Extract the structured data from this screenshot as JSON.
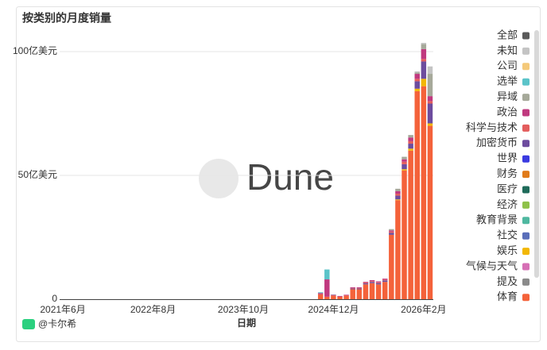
{
  "chart_data": {
    "type": "stacked_bar",
    "title": "按类别的月度销量",
    "x_label": "日期",
    "watermark": "Dune",
    "author": "@卡尔希",
    "categories": [
      "2021年6月",
      null,
      null,
      null,
      null,
      null,
      null,
      null,
      null,
      null,
      null,
      null,
      null,
      null,
      "2022年8月",
      null,
      null,
      null,
      null,
      null,
      null,
      null,
      null,
      null,
      null,
      null,
      null,
      null,
      "2023年10月",
      null,
      null,
      null,
      null,
      null,
      null,
      null,
      null,
      null,
      null,
      null,
      null,
      null,
      "2024年12月",
      null,
      null,
      null,
      null,
      null,
      null,
      null,
      null,
      null,
      null,
      null,
      null,
      null,
      "2026年2月",
      null
    ],
    "ylim": [
      0,
      108
    ],
    "yticks": [
      0,
      {
        "value": 50,
        "label": "50亿美元"
      },
      {
        "value": 100,
        "label": "100亿美元"
      }
    ],
    "grid": true,
    "legend": "right",
    "series": [
      {
        "name": "全部",
        "color": "#5a5a5a",
        "values": [
          0,
          0,
          0,
          0,
          0,
          0,
          0,
          0,
          0,
          0,
          0,
          0,
          0,
          0,
          0,
          0,
          0,
          0,
          0,
          0,
          0,
          0,
          0,
          0,
          0,
          0,
          0,
          0,
          0,
          0,
          0,
          0,
          0,
          0,
          0,
          0,
          0,
          0,
          0,
          0,
          0,
          0,
          0,
          0,
          0,
          0,
          0,
          0,
          0,
          0,
          0,
          0,
          0,
          0,
          0,
          0,
          0,
          0
        ]
      },
      {
        "name": "未知",
        "color": "#c4c4c4",
        "values": [
          0,
          0,
          0,
          0,
          0,
          0,
          0,
          0,
          0,
          0,
          0,
          0,
          0,
          0,
          0,
          0,
          0,
          0,
          0,
          0,
          0,
          0,
          0,
          0,
          0,
          0,
          0,
          0,
          0,
          0,
          0,
          0,
          0,
          0,
          0,
          0,
          0,
          0,
          0,
          0,
          0,
          0,
          0,
          0,
          0,
          0,
          0,
          0,
          0,
          0,
          0,
          0,
          0,
          0,
          0,
          0.5,
          0.5,
          3
        ]
      },
      {
        "name": "公司",
        "color": "#f4c97a",
        "values": [
          0,
          0,
          0,
          0,
          0,
          0,
          0,
          0,
          0,
          0,
          0,
          0,
          0,
          0,
          0,
          0,
          0,
          0,
          0,
          0,
          0,
          0,
          0,
          0,
          0,
          0,
          0,
          0,
          0,
          0,
          0,
          0,
          0,
          0,
          0,
          0,
          0,
          0,
          0,
          0,
          0,
          0,
          0,
          0,
          0,
          0,
          0,
          0,
          0,
          0,
          0,
          0,
          0,
          0,
          0,
          0,
          0,
          0
        ]
      },
      {
        "name": "选举",
        "color": "#5bc4c9",
        "values": [
          0,
          0,
          0,
          0,
          0,
          0,
          0,
          0,
          0,
          0,
          0,
          0,
          0,
          0,
          0,
          0,
          0,
          0,
          0,
          0,
          0,
          0,
          0,
          0,
          0,
          0,
          0,
          0,
          0,
          0,
          0,
          0,
          0,
          0,
          0,
          0,
          0,
          0,
          0,
          0,
          0.3,
          4,
          0.1,
          0,
          0,
          0,
          0,
          0,
          0,
          0,
          0,
          0,
          0,
          0,
          0,
          0,
          0,
          0
        ]
      },
      {
        "name": "异域",
        "color": "#a6a99a",
        "values": [
          0,
          0,
          0,
          0,
          0,
          0,
          0,
          0,
          0,
          0,
          0,
          0,
          0,
          0,
          0,
          0,
          0,
          0,
          0,
          0,
          0,
          0,
          0,
          0,
          0,
          0,
          0,
          0,
          0,
          0,
          0,
          0,
          0,
          0,
          0,
          0,
          0,
          0,
          0,
          0,
          0,
          0,
          0,
          0,
          0,
          0,
          0,
          0,
          0,
          0,
          0,
          0.5,
          1,
          1,
          1,
          0.5,
          2,
          9
        ]
      },
      {
        "name": "政治",
        "color": "#c0397f",
        "values": [
          0,
          0,
          0,
          0,
          0,
          0,
          0,
          0,
          0,
          0,
          0,
          0,
          0,
          0,
          0,
          0,
          0,
          0,
          0,
          0,
          0,
          0,
          0,
          0,
          0,
          0,
          0,
          0,
          0,
          0,
          0,
          0,
          0,
          0,
          0,
          0,
          0,
          0,
          0,
          0,
          0.5,
          7,
          0.3,
          0.3,
          0.3,
          0.3,
          0.3,
          0.3,
          0.4,
          0.4,
          0.4,
          0.5,
          1,
          1,
          1.5,
          2,
          4,
          2
        ]
      },
      {
        "name": "科学与技术",
        "color": "#e35d5d",
        "values": [
          0,
          0,
          0,
          0,
          0,
          0,
          0,
          0,
          0,
          0,
          0,
          0,
          0,
          0,
          0,
          0,
          0,
          0,
          0,
          0,
          0,
          0,
          0,
          0,
          0,
          0,
          0,
          0,
          0,
          0,
          0,
          0,
          0,
          0,
          0,
          0,
          0,
          0,
          0,
          0,
          0,
          0,
          0,
          0,
          0,
          0.2,
          0.2,
          0.3,
          0.3,
          0.3,
          0.3,
          0.5,
          0.8,
          1,
          1,
          1,
          1,
          1
        ]
      },
      {
        "name": "加密货币",
        "color": "#6d4c9e",
        "values": [
          0,
          0,
          0,
          0,
          0,
          0,
          0,
          0,
          0,
          0,
          0,
          0,
          0,
          0,
          0,
          0,
          0,
          0,
          0,
          0,
          0,
          0,
          0,
          0,
          0,
          0,
          0,
          0,
          0,
          0,
          0,
          0,
          0,
          0,
          0,
          0,
          0,
          0,
          0,
          0,
          0,
          0,
          0,
          0,
          0,
          0.3,
          0.3,
          0.4,
          0.5,
          0.5,
          0.6,
          0.8,
          1.5,
          2,
          2,
          3,
          7,
          8
        ]
      },
      {
        "name": "世界",
        "color": "#3a3ae0",
        "values": [
          0,
          0,
          0,
          0,
          0,
          0,
          0,
          0,
          0,
          0,
          0,
          0,
          0,
          0,
          0,
          0,
          0,
          0,
          0,
          0,
          0,
          0,
          0,
          0,
          0,
          0,
          0,
          0,
          0,
          0,
          0,
          0,
          0,
          0,
          0,
          0,
          0,
          0,
          0,
          0,
          0,
          0,
          0,
          0,
          0,
          0,
          0,
          0,
          0,
          0,
          0,
          0,
          0,
          0,
          0,
          0,
          0,
          0
        ]
      },
      {
        "name": "财务",
        "color": "#e07b1a",
        "values": [
          0,
          0,
          0,
          0,
          0,
          0,
          0,
          0,
          0,
          0,
          0,
          0,
          0,
          0,
          0,
          0,
          0,
          0,
          0,
          0,
          0,
          0,
          0,
          0,
          0,
          0,
          0,
          0,
          0,
          0,
          0,
          0,
          0,
          0,
          0,
          0,
          0,
          0,
          0,
          0,
          0,
          0,
          0,
          0,
          0,
          0,
          0,
          0,
          0,
          0,
          0,
          0,
          0,
          0,
          0,
          0,
          0,
          0
        ]
      },
      {
        "name": "医疗",
        "color": "#1f6b5a",
        "values": [
          0,
          0,
          0,
          0,
          0,
          0,
          0,
          0,
          0,
          0,
          0,
          0,
          0,
          0,
          0,
          0,
          0,
          0,
          0,
          0,
          0,
          0,
          0,
          0,
          0,
          0,
          0,
          0,
          0,
          0,
          0,
          0,
          0,
          0,
          0,
          0,
          0,
          0,
          0,
          0,
          0,
          0,
          0,
          0,
          0,
          0,
          0,
          0,
          0,
          0,
          0,
          0,
          0,
          0,
          0,
          0,
          0,
          0
        ]
      },
      {
        "name": "经济",
        "color": "#8fc24a",
        "values": [
          0,
          0,
          0,
          0,
          0,
          0,
          0,
          0,
          0,
          0,
          0,
          0,
          0,
          0,
          0,
          0,
          0,
          0,
          0,
          0,
          0,
          0,
          0,
          0,
          0,
          0,
          0,
          0,
          0,
          0,
          0,
          0,
          0,
          0,
          0,
          0,
          0,
          0,
          0,
          0,
          0,
          0,
          0,
          0,
          0,
          0,
          0,
          0,
          0,
          0,
          0,
          0,
          0,
          0,
          0,
          0,
          0,
          0
        ]
      },
      {
        "name": "教育背景",
        "color": "#4fb8a0",
        "values": [
          0,
          0,
          0,
          0,
          0,
          0,
          0,
          0,
          0,
          0,
          0,
          0,
          0,
          0,
          0,
          0,
          0,
          0,
          0,
          0,
          0,
          0,
          0,
          0,
          0,
          0,
          0,
          0,
          0,
          0,
          0,
          0,
          0,
          0,
          0,
          0,
          0,
          0,
          0,
          0,
          0,
          0,
          0,
          0,
          0,
          0,
          0,
          0,
          0,
          0,
          0,
          0,
          0,
          0,
          0,
          0,
          0,
          0
        ]
      },
      {
        "name": "社交",
        "color": "#5a6fba",
        "values": [
          0,
          0,
          0,
          0,
          0,
          0,
          0,
          0,
          0,
          0,
          0,
          0,
          0,
          0,
          0,
          0,
          0,
          0,
          0,
          0,
          0,
          0,
          0,
          0,
          0,
          0,
          0,
          0,
          0,
          0,
          0,
          0,
          0,
          0,
          0,
          0,
          0,
          0,
          0,
          0,
          0,
          0,
          0,
          0,
          0,
          0,
          0,
          0,
          0,
          0,
          0,
          0,
          0,
          0,
          0,
          0,
          0,
          0
        ]
      },
      {
        "name": "娱乐",
        "color": "#f2b705",
        "values": [
          0,
          0,
          0,
          0,
          0,
          0,
          0,
          0,
          0,
          0,
          0,
          0,
          0,
          0,
          0,
          0,
          0,
          0,
          0,
          0,
          0,
          0,
          0,
          0,
          0,
          0,
          0,
          0,
          0,
          0,
          0,
          0,
          0,
          0,
          0,
          0,
          0,
          0,
          0,
          0,
          0,
          0,
          0,
          0,
          0,
          0,
          0,
          0,
          0,
          0,
          0,
          0,
          0.3,
          0.5,
          0.8,
          1,
          3,
          1
        ]
      },
      {
        "name": "气候与天气",
        "color": "#d66fb5",
        "values": [
          0,
          0,
          0,
          0,
          0,
          0,
          0,
          0,
          0,
          0,
          0,
          0,
          0,
          0,
          0,
          0,
          0,
          0,
          0,
          0,
          0,
          0,
          0,
          0,
          0,
          0,
          0,
          0,
          0,
          0,
          0,
          0,
          0,
          0,
          0,
          0,
          0,
          0,
          0,
          0,
          0,
          0,
          0,
          0,
          0,
          0,
          0,
          0,
          0,
          0,
          0,
          0,
          0,
          0,
          0,
          0,
          0,
          0
        ]
      },
      {
        "name": "提及",
        "color": "#8a8a8a",
        "values": [
          0,
          0,
          0,
          0,
          0,
          0,
          0,
          0,
          0,
          0,
          0,
          0,
          0,
          0,
          0,
          0,
          0,
          0,
          0,
          0,
          0,
          0,
          0,
          0,
          0,
          0,
          0,
          0,
          0,
          0,
          0,
          0,
          0,
          0,
          0,
          0,
          0,
          0,
          0,
          0,
          0,
          0,
          0,
          0,
          0,
          0,
          0,
          0,
          0,
          0,
          0,
          0,
          0,
          0,
          0,
          0,
          0,
          0
        ]
      },
      {
        "name": "体育",
        "color": "#f4623a",
        "values": [
          0,
          0,
          0,
          0,
          0,
          0,
          0,
          0,
          0,
          0,
          0,
          0,
          0,
          0,
          0,
          0,
          0,
          0,
          0,
          0,
          0,
          0,
          0,
          0,
          0,
          0,
          0,
          0,
          0,
          0,
          0,
          0,
          0,
          0,
          0,
          0,
          0,
          0,
          0,
          0,
          2,
          1,
          1.5,
          1,
          1.5,
          4,
          4,
          6,
          6.5,
          6,
          7,
          26,
          40,
          52,
          60,
          84,
          86,
          70
        ]
      }
    ]
  }
}
